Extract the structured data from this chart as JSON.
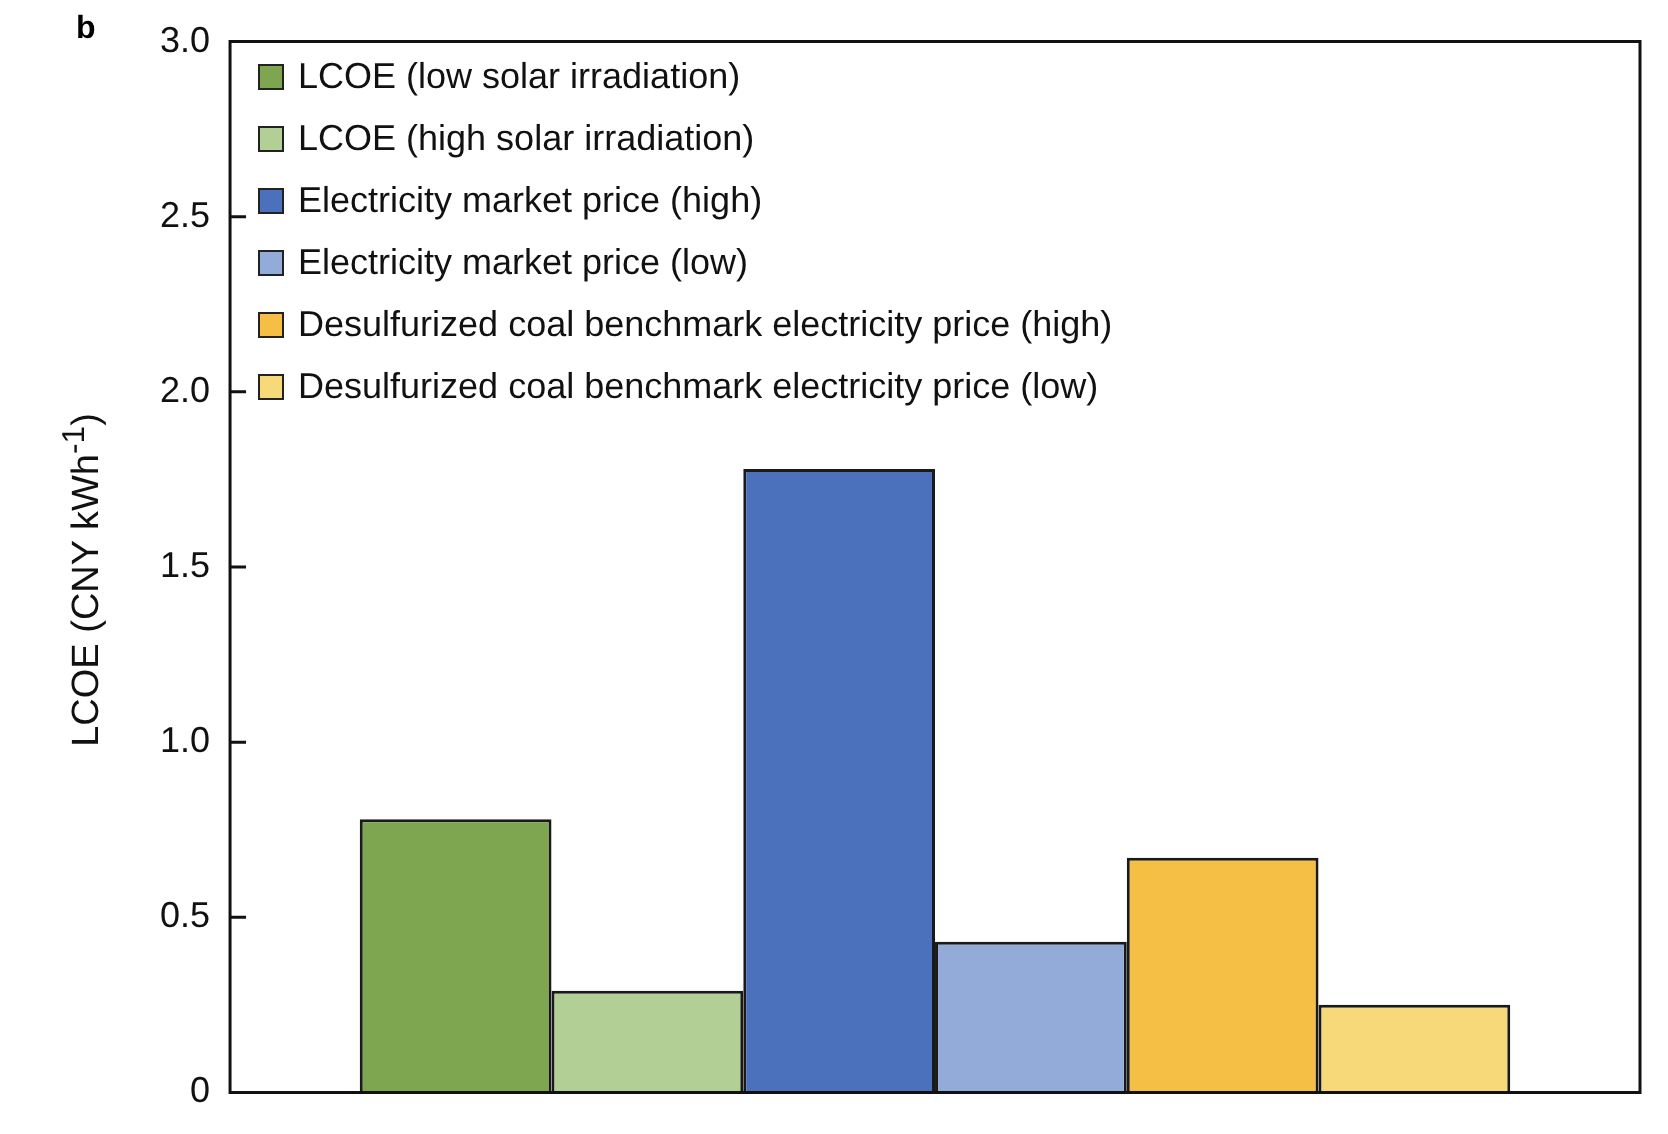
{
  "chart_data": {
    "type": "bar",
    "ylabel": "LCOE (CNY kWh$^{-1}$)",
    "annotations": [
      "b"
    ],
    "categories": [
      null
    ],
    "series": [
      {
        "name": "LCOE (low solar irradiation)",
        "color": "#7ea650",
        "values": [
          0.78
        ]
      },
      {
        "name": "LCOE (high solar irradiation)",
        "color": "#b2d096",
        "values": [
          0.29
        ]
      },
      {
        "name": "Electricity market price (high)",
        "color": "#4b70bc",
        "values": [
          1.78
        ]
      },
      {
        "name": "Electricity market price (low)",
        "color": "#93abd8",
        "values": [
          0.43
        ]
      },
      {
        "name": "Desulfurized coal benchmark electricity price (high)",
        "color": "#f5bf45",
        "values": [
          0.67
        ]
      },
      {
        "name": "Desulfurized coal benchmark electricity price (low)",
        "color": "#f8d97a",
        "values": [
          0.25
        ]
      }
    ],
    "ylim": [
      0,
      3
    ],
    "yticks": [
      0,
      {
        "value": 0.5,
        "label": "0.5"
      },
      {
        "value": 1,
        "label": "1.0"
      },
      {
        "value": 1.5,
        "label": "1.5"
      },
      {
        "value": 2,
        "label": "2.0"
      },
      {
        "value": 2.5,
        "label": "2.5"
      },
      {
        "value": 3,
        "label": "3.0"
      }
    ],
    "grid": false,
    "legend": "top left",
    "tick_labels": "y"
  }
}
